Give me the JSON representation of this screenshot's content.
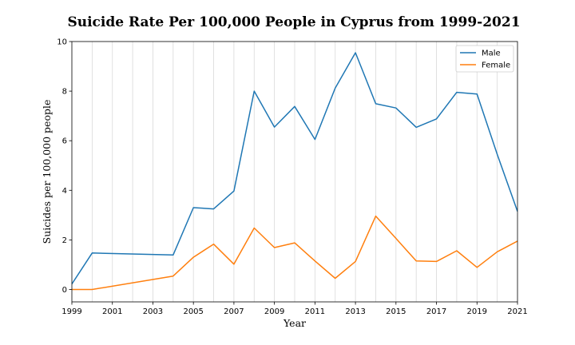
{
  "chart_data": {
    "type": "line",
    "title": "Suicide Rate Per 100,000 People in Cyprus from 1999-2021",
    "xlabel": "Year",
    "ylabel": "Suicides per 100,000 people",
    "xlim": [
      1999,
      2021
    ],
    "ylim": [
      -0.5,
      10
    ],
    "x_ticks": [
      1999,
      2001,
      2003,
      2005,
      2007,
      2009,
      2011,
      2013,
      2015,
      2017,
      2019,
      2021
    ],
    "y_ticks": [
      0,
      2,
      4,
      6,
      8,
      10
    ],
    "vertical_grid": true,
    "legend_position": "top-right",
    "series": [
      {
        "name": "Male",
        "color": "#1f77b4",
        "x": [
          1999,
          2000,
          2004,
          2005,
          2006,
          2007,
          2008,
          2009,
          2010,
          2011,
          2012,
          2013,
          2014,
          2015,
          2016,
          2017,
          2018,
          2019,
          2020,
          2021
        ],
        "y": [
          0.22,
          1.47,
          1.39,
          3.3,
          3.25,
          3.97,
          8.0,
          6.55,
          7.38,
          6.05,
          8.12,
          9.55,
          7.49,
          7.32,
          6.54,
          6.88,
          7.95,
          7.88,
          5.45,
          3.15
        ]
      },
      {
        "name": "Female",
        "color": "#ff7f0e",
        "x": [
          1999,
          2000,
          2004,
          2005,
          2006,
          2007,
          2008,
          2009,
          2010,
          2011,
          2012,
          2013,
          2014,
          2015,
          2016,
          2017,
          2018,
          2019,
          2020,
          2021
        ],
        "y": [
          0.0,
          0.0,
          0.54,
          1.3,
          1.83,
          1.02,
          2.48,
          1.69,
          1.88,
          1.15,
          0.45,
          1.13,
          2.96,
          2.06,
          1.15,
          1.13,
          1.56,
          0.89,
          1.52,
          1.95
        ]
      }
    ]
  }
}
